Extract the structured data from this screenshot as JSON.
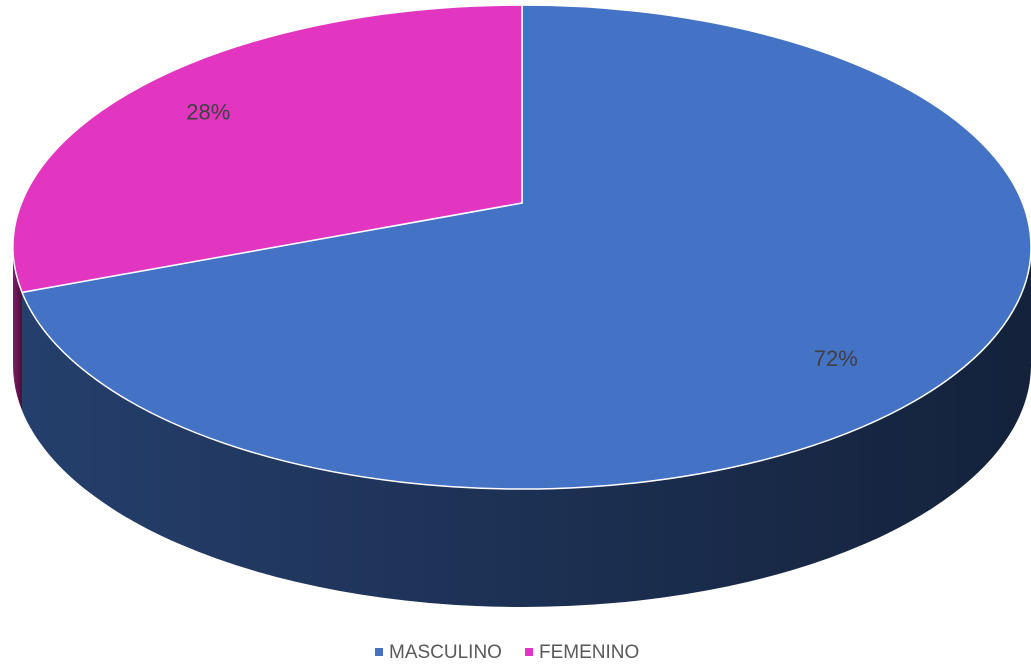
{
  "chart_data": {
    "type": "pie3d",
    "categories": [
      "MASCULINO",
      "FEMENINO"
    ],
    "values": [
      72,
      28
    ],
    "value_labels": [
      "72%",
      "28%"
    ],
    "colors": [
      "#4472c4",
      "#e236c0"
    ],
    "legend": "bottom"
  }
}
